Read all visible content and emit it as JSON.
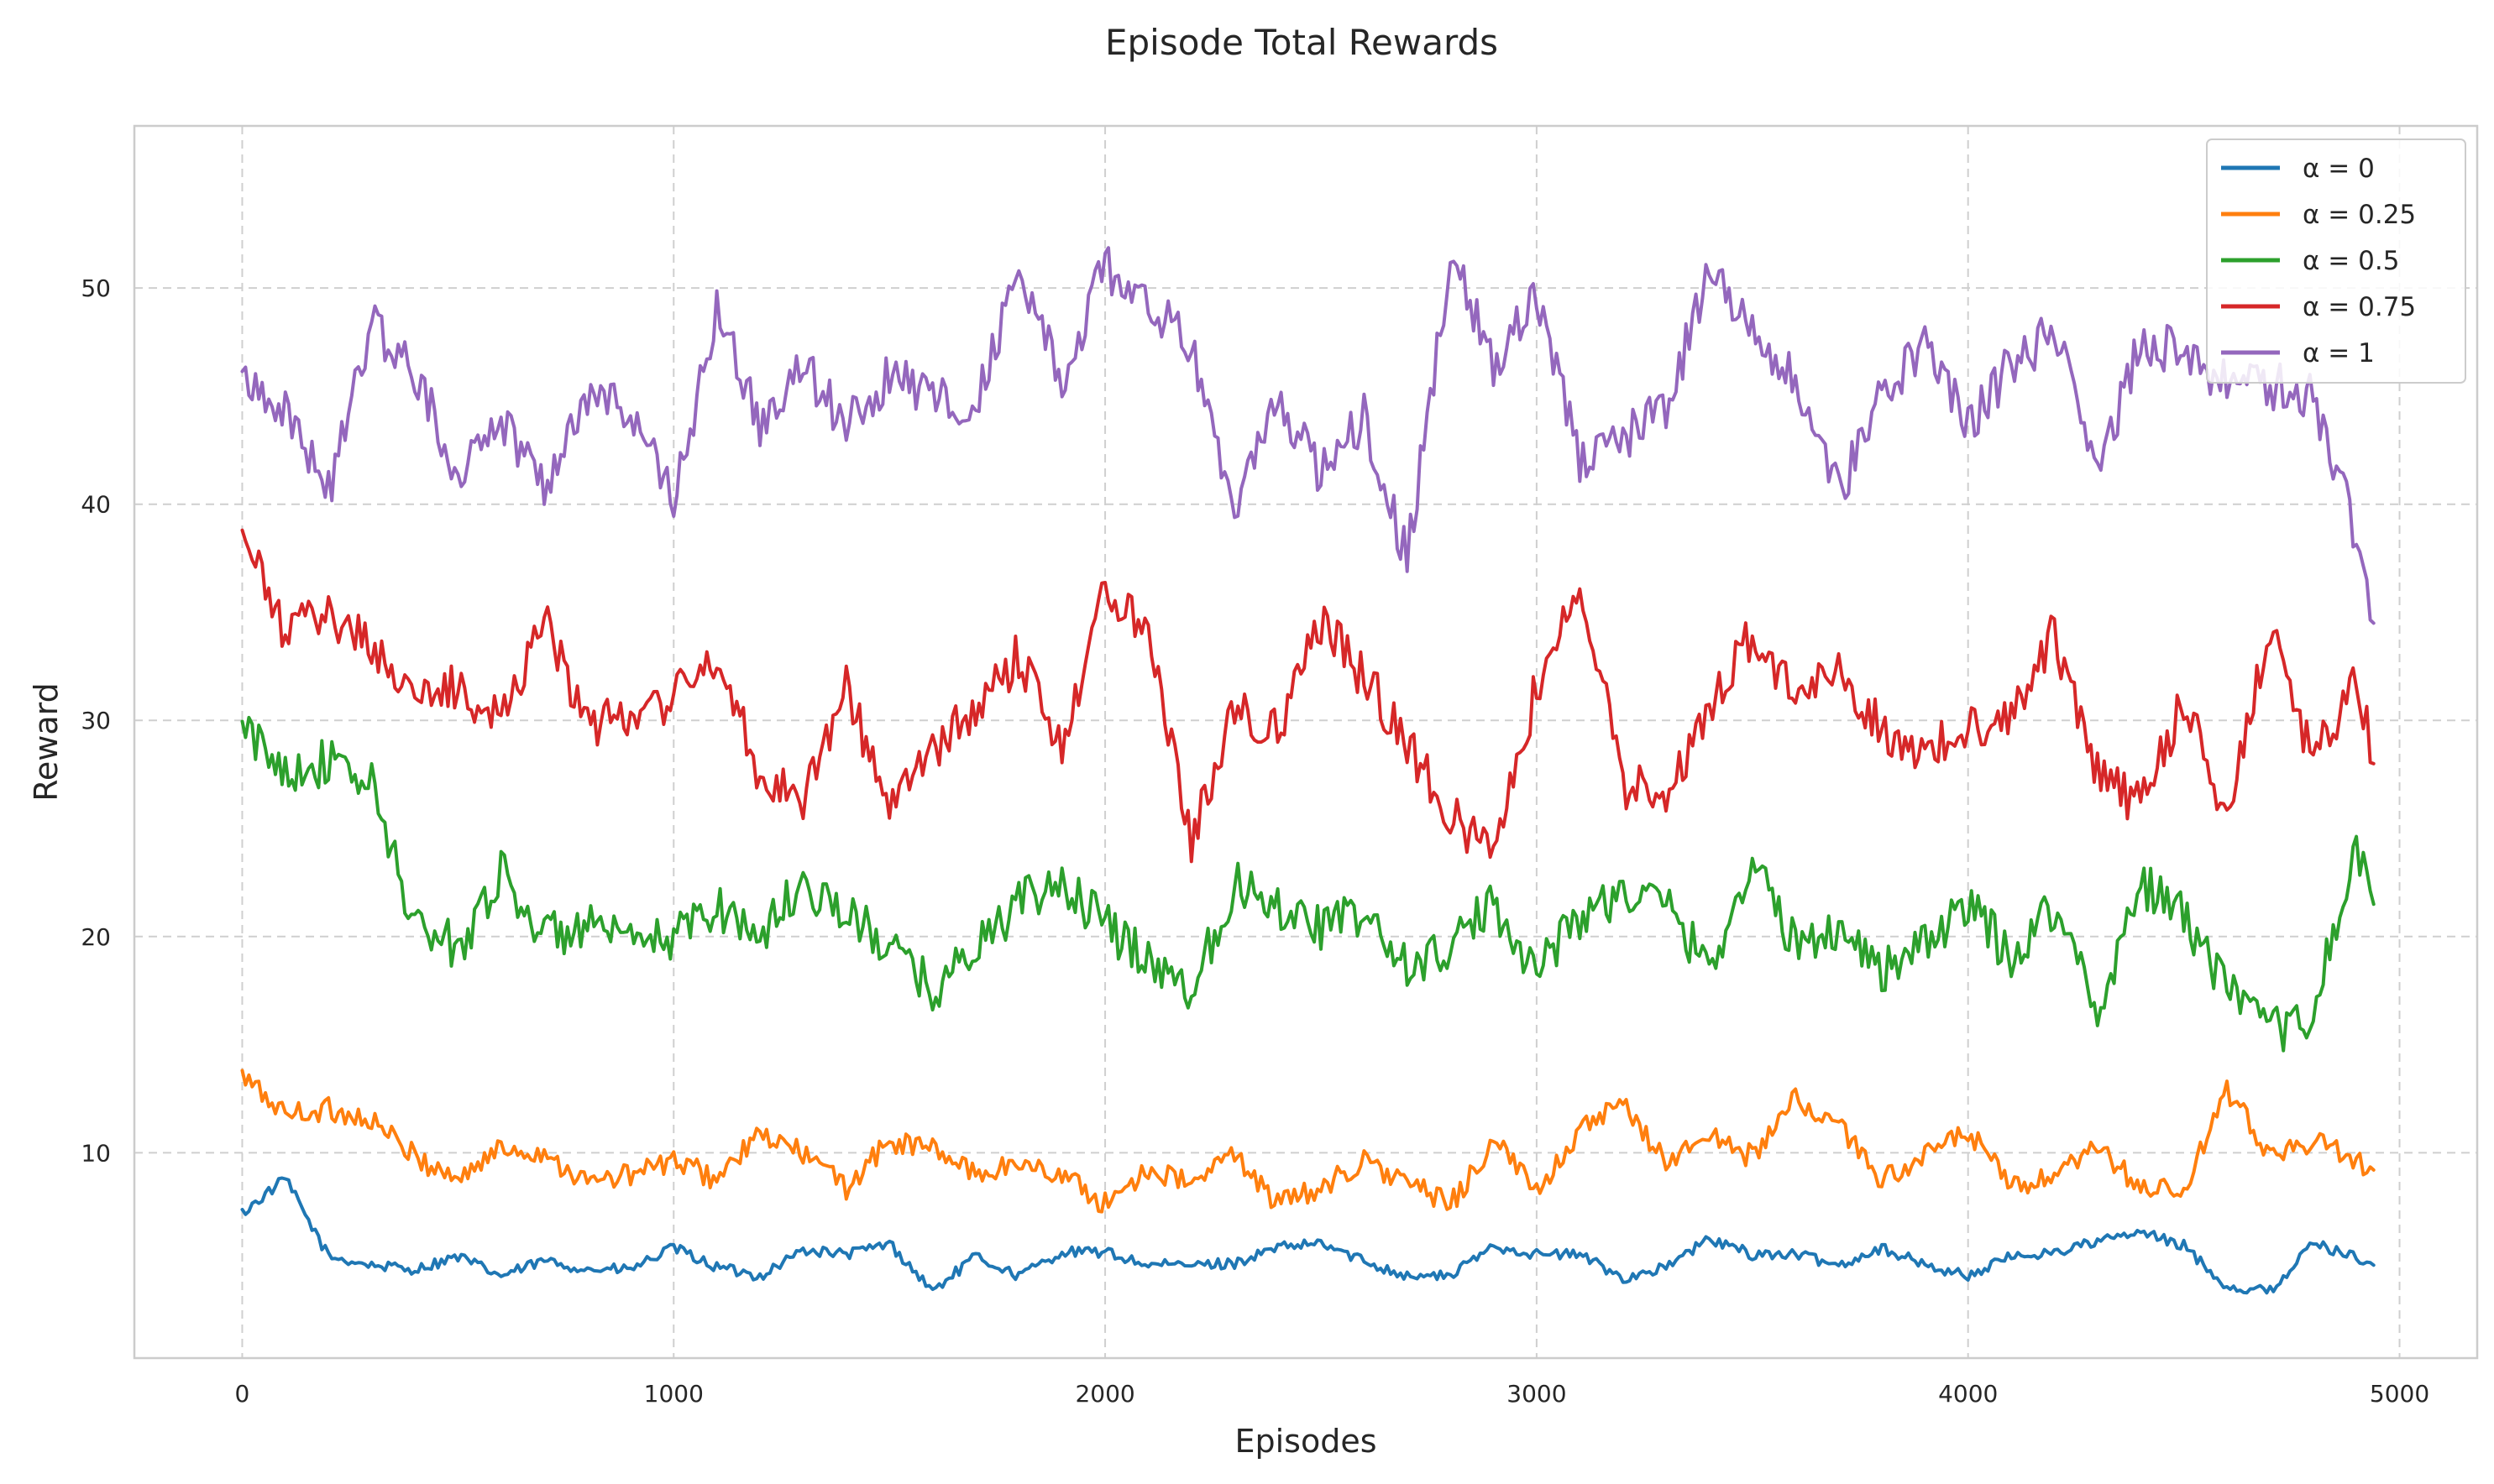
{
  "chart_data": {
    "type": "line",
    "title": "Episode Total Rewards",
    "xlabel": "Episodes",
    "ylabel": "Reward",
    "xlim": [
      -250,
      5180
    ],
    "ylim": [
      0.5,
      57.5
    ],
    "xticks": [
      0,
      1000,
      2000,
      3000,
      4000,
      5000
    ],
    "xtick_labels": [
      "0",
      "1000",
      "2000",
      "3000",
      "4000",
      "5000"
    ],
    "yticks": [
      10,
      20,
      30,
      40,
      50
    ],
    "ytick_labels": [
      "10",
      "20",
      "30",
      "40",
      "50"
    ],
    "grid": true,
    "legend_position": "top-right",
    "x": [
      0,
      100,
      200,
      300,
      400,
      500,
      600,
      700,
      800,
      900,
      1000,
      1100,
      1200,
      1300,
      1400,
      1500,
      1600,
      1700,
      1800,
      1900,
      2000,
      2100,
      2200,
      2300,
      2400,
      2500,
      2600,
      2700,
      2800,
      2900,
      3000,
      3100,
      3200,
      3300,
      3400,
      3500,
      3600,
      3700,
      3800,
      3900,
      4000,
      4100,
      4200,
      4300,
      4400,
      4500,
      4600,
      4700,
      4800,
      4900,
      4940
    ],
    "series": [
      {
        "name": "α = 0",
        "color": "#1f77b4",
        "values": [
          7.2,
          8.8,
          5.2,
          4.8,
          4.6,
          5.2,
          4.3,
          5.0,
          4.6,
          4.6,
          5.6,
          4.7,
          4.3,
          5.5,
          5.3,
          5.8,
          3.6,
          5.2,
          4.3,
          5.4,
          5.4,
          4.8,
          4.8,
          4.9,
          5.6,
          5.8,
          5.0,
          4.3,
          4.3,
          5.7,
          5.3,
          5.3,
          4.2,
          4.7,
          6.0,
          5.3,
          5.3,
          4.8,
          5.6,
          4.8,
          4.3,
          5.2,
          5.4,
          5.9,
          6.3,
          5.7,
          3.8,
          3.6,
          5.8,
          5.2,
          4.8
        ]
      },
      {
        "name": "α = 0.25",
        "color": "#ff7f0e",
        "values": [
          13.5,
          11.8,
          12.0,
          11.5,
          9.8,
          8.8,
          10.2,
          10.0,
          8.6,
          9.0,
          9.6,
          8.8,
          10.8,
          10.0,
          8.4,
          10.5,
          10.2,
          9.0,
          9.5,
          9.0,
          7.6,
          9.3,
          8.5,
          10.0,
          7.6,
          8.4,
          9.6,
          8.6,
          7.6,
          10.5,
          8.3,
          11.0,
          12.2,
          9.6,
          10.8,
          9.8,
          12.5,
          11.2,
          8.8,
          9.8,
          11.0,
          8.4,
          8.8,
          10.2,
          8.4,
          8.2,
          12.8,
          10.0,
          10.5,
          9.6,
          9.2
        ]
      },
      {
        "name": "α = 0.5",
        "color": "#2ca02c",
        "values": [
          29.5,
          27.8,
          28.0,
          27.0,
          20.5,
          19.5,
          23.0,
          20.0,
          20.5,
          19.5,
          20.0,
          21.5,
          20.0,
          22.5,
          21.0,
          19.5,
          17.5,
          19.5,
          21.5,
          22.5,
          20.5,
          19.0,
          17.5,
          22.5,
          21.5,
          20.5,
          21.0,
          18.5,
          19.5,
          21.5,
          18.5,
          21.0,
          22.0,
          21.5,
          18.5,
          23.5,
          19.5,
          20.5,
          18.5,
          19.5,
          21.5,
          19.0,
          21.5,
          16.5,
          22.5,
          21.0,
          17.5,
          15.5,
          16.5,
          24.0,
          21.5
        ]
      },
      {
        "name": "α = 0.75",
        "color": "#d62728",
        "values": [
          38.5,
          34.0,
          35.0,
          33.5,
          31.0,
          31.5,
          30.0,
          35.0,
          29.5,
          30.5,
          31.0,
          33.0,
          27.5,
          26.5,
          31.5,
          26.0,
          28.5,
          30.5,
          33.0,
          29.0,
          36.0,
          34.5,
          24.5,
          30.5,
          29.5,
          34.5,
          32.0,
          29.0,
          25.5,
          24.0,
          31.5,
          36.5,
          27.0,
          26.5,
          30.5,
          34.0,
          31.0,
          32.5,
          29.5,
          28.5,
          29.5,
          30.5,
          34.0,
          27.5,
          26.0,
          31.0,
          25.5,
          34.5,
          28.0,
          32.0,
          28.0
        ]
      },
      {
        "name": "α = 1",
        "color": "#9467bd",
        "values": [
          46.0,
          44.5,
          40.5,
          48.5,
          46.0,
          41.5,
          44.0,
          41.0,
          45.0,
          44.5,
          40.0,
          49.0,
          43.5,
          46.5,
          43.5,
          46.0,
          45.0,
          44.5,
          51.0,
          45.5,
          51.0,
          49.0,
          47.5,
          40.0,
          44.5,
          41.5,
          44.0,
          37.5,
          51.5,
          46.5,
          50.0,
          42.0,
          43.0,
          44.5,
          50.5,
          48.5,
          45.5,
          40.5,
          45.0,
          47.5,
          43.5,
          46.5,
          48.0,
          41.5,
          47.5,
          47.0,
          45.5,
          45.5,
          45.0,
          38.5,
          34.5
        ]
      }
    ]
  }
}
